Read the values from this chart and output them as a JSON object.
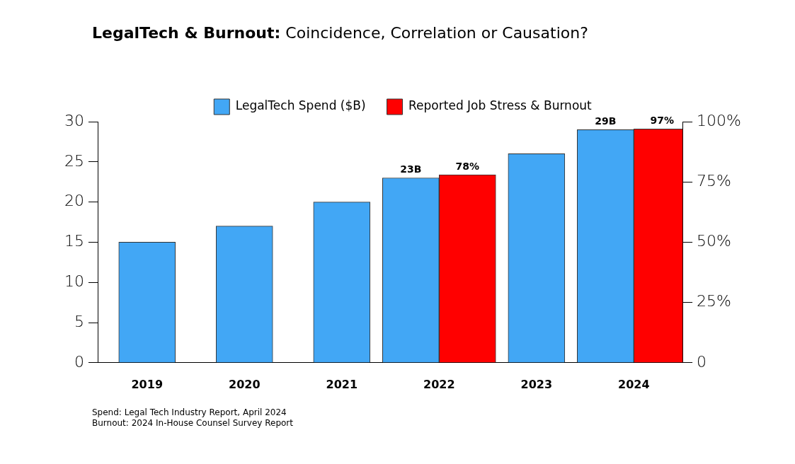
{
  "chart_data": {
    "type": "bar",
    "title": "LegalTech & Burnout: Coincidence, Correlation or Causation?",
    "categories": [
      "2019",
      "2020",
      "2021",
      "2022",
      "2023",
      "2024"
    ],
    "series": [
      {
        "name": "LegalTech Spend ($B)",
        "color": "#42a7f5",
        "values": [
          15,
          17,
          20,
          23,
          26,
          29
        ],
        "value_labels": [
          null,
          null,
          null,
          "23B",
          null,
          "29B"
        ]
      },
      {
        "name": "Reported Job Stress & Burnout",
        "color": "#ff0000",
        "axis": "y2",
        "values": [
          null,
          null,
          null,
          78,
          null,
          97
        ],
        "value_labels": [
          null,
          null,
          null,
          "78%",
          null,
          "97%"
        ]
      }
    ],
    "ylim": [
      0,
      30
    ],
    "yticks": [
      0,
      5,
      10,
      15,
      20,
      25,
      30
    ],
    "y2lim": [
      0,
      100
    ],
    "y2ticks": [
      0,
      {
        "value": 25,
        "label": "25%"
      },
      {
        "value": 50,
        "label": "50%"
      },
      {
        "value": 75,
        "label": "75%"
      },
      {
        "value": 100,
        "label": "100%"
      }
    ],
    "legend": "top",
    "annotations": [
      "Spend: Legal Tech Industry Report, April 2024",
      "Burnout: 2024 In-House Counsel Survey Report"
    ]
  }
}
